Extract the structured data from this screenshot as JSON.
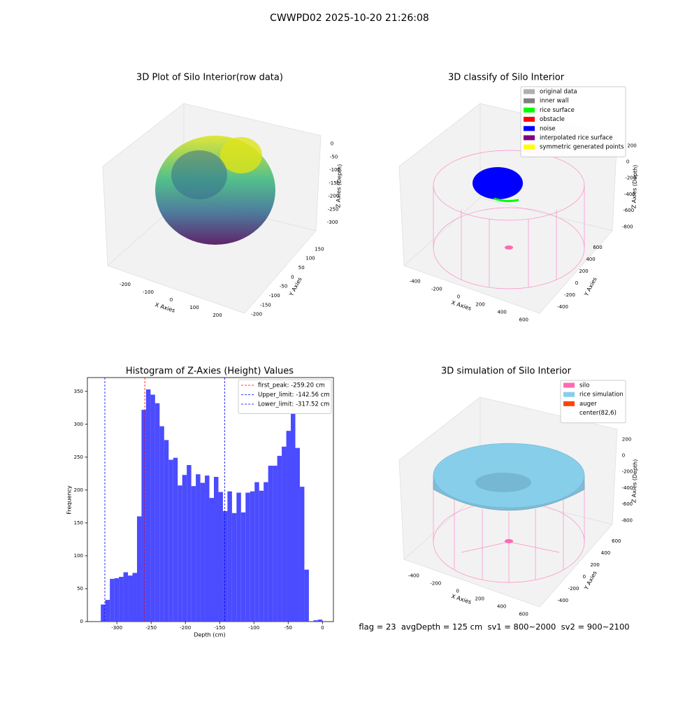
{
  "title": "CWWPD02 2025-10-20 21:26:08",
  "chart_data": [
    {
      "type": "scatter3d",
      "title": "3D Plot of Silo Interior(row data)",
      "xlabel": "X Axies",
      "ylabel": "Y Axies",
      "zlabel": "Z Axies (Depth)",
      "xlim": [
        -280,
        280
      ],
      "ylim": [
        -220,
        170
      ],
      "zlim": [
        -345,
        15
      ],
      "xticks": [
        -200,
        -100,
        0,
        100,
        200
      ],
      "yticks": [
        -200,
        -150,
        -100,
        -50,
        0,
        50,
        100,
        150
      ],
      "zticks": [
        -300,
        -250,
        -200,
        -150,
        -100,
        -50,
        0
      ]
    },
    {
      "type": "scatter3d",
      "title": "3D classify of Silo Interior",
      "xlabel": "X Axies",
      "ylabel": "Y Axies",
      "zlabel": "Z Axies (Depth)",
      "xlim": [
        -520,
        720
      ],
      "ylim": [
        -520,
        720
      ],
      "zlim": [
        -900,
        280
      ],
      "xticks": [
        -400,
        -200,
        0,
        200,
        400,
        600
      ],
      "yticks": [
        -400,
        -200,
        0,
        200,
        400,
        600
      ],
      "zticks": [
        -800,
        -600,
        -400,
        -200,
        0,
        200
      ],
      "legend_items": [
        {
          "name": "original data",
          "color": "#b0b0b0"
        },
        {
          "name": "inner wall",
          "color": "#808080"
        },
        {
          "name": "rice surface",
          "color": "#00ff00"
        },
        {
          "name": "obstacle",
          "color": "#ff0000"
        },
        {
          "name": "noise",
          "color": "#0000ff"
        },
        {
          "name": "interpolated rice surface",
          "color": "#800080"
        },
        {
          "name": "symmetric generated points",
          "color": "#ffff00"
        }
      ],
      "legend": "upper right"
    },
    {
      "type": "histogram",
      "title": "Histogram of Z-Axies (Height) Values",
      "xlabel": "Depth (cm)",
      "ylabel": "Frequency",
      "color": "#4b4bff",
      "bins": [
        -323.4,
        -316.8,
        -310.2,
        -303.6,
        -297,
        -290.4,
        -283.8,
        -277.2,
        -270.6,
        -264,
        -257.4,
        -250.8,
        -244.2,
        -237.6,
        -231,
        -224.4,
        -217.8,
        -211.2,
        -204.6,
        -198,
        -191.4,
        -184.8,
        -178.2,
        -171.6,
        -165,
        -158.4,
        -151.8,
        -145.2,
        -138.6,
        -132,
        -125.4,
        -118.8,
        -112.2,
        -105.6,
        -99,
        -92.4,
        -85.8,
        -79.2,
        -72.6,
        -66,
        -59.4,
        -52.8,
        -46.2,
        -39.6,
        -33,
        -26.4,
        -19.8,
        -13.2,
        -6.6,
        0
      ],
      "values": [
        26,
        33,
        65,
        66,
        68,
        75,
        70,
        74,
        160,
        322,
        353,
        345,
        332,
        297,
        276,
        246,
        249,
        207,
        223,
        238,
        206,
        224,
        211,
        222,
        188,
        220,
        197,
        168,
        198,
        165,
        196,
        166,
        196,
        198,
        212,
        199,
        212,
        237,
        237,
        252,
        266,
        290,
        328,
        264,
        205,
        79,
        0,
        2,
        3
      ],
      "xlim": [
        -343,
        16
      ],
      "ylim": [
        0,
        371
      ],
      "xticks": [
        -300,
        -250,
        -200,
        -150,
        -100,
        -50,
        0
      ],
      "yticks": [
        0,
        50,
        100,
        150,
        200,
        250,
        300,
        350
      ],
      "lines": [
        {
          "name": "first_peak: -259.20 cm",
          "value": -259.2,
          "color": "#ff0000"
        },
        {
          "name": "Upper_limit: -142.56 cm",
          "value": -142.56,
          "color": "#0000ff"
        },
        {
          "name": "Lower_limit: -317.52 cm",
          "value": -317.52,
          "color": "#0000ff"
        }
      ],
      "legend": "upper right"
    },
    {
      "type": "surface3d",
      "title": "3D simulation of Silo Interior",
      "xlabel": "X Axies",
      "ylabel": "Y Axies",
      "zlabel": "Z Axies (Depth)",
      "xlim": [
        -520,
        720
      ],
      "ylim": [
        -520,
        720
      ],
      "zlim": [
        -900,
        280
      ],
      "xticks": [
        -400,
        -200,
        0,
        200,
        400,
        600
      ],
      "yticks": [
        -400,
        -200,
        0,
        200,
        400,
        600
      ],
      "zticks": [
        -800,
        -600,
        -400,
        -200,
        0,
        200
      ],
      "legend_items": [
        {
          "name": "silo",
          "color": "#ff69b4"
        },
        {
          "name": "rice simulation",
          "color": "#87ceeb"
        },
        {
          "name": "auger",
          "color": "#ff4500"
        },
        {
          "name": "center(82,6)",
          "color": "#ffffff"
        }
      ],
      "legend": "upper right"
    }
  ],
  "footer": "flag = 23  avgDepth = 125 cm  sv1 = 800~2000  sv2 = 900~2100"
}
